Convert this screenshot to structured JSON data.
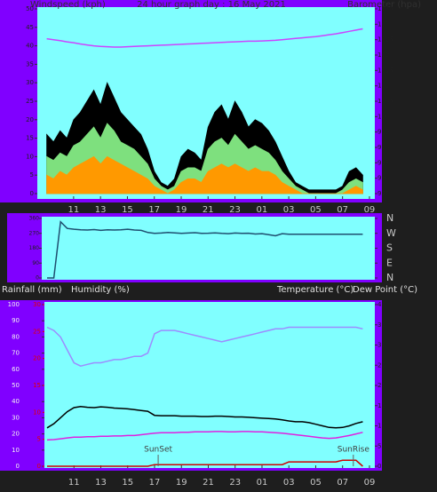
{
  "chart_data": [
    {
      "type": "line",
      "title": "24 hour graph day : 16 May 2021",
      "ylabel": "Windspeed (kph)",
      "y2label": "Barometer (hpa)",
      "x": [
        9,
        9.5,
        10,
        10.5,
        11,
        11.5,
        12,
        12.5,
        13,
        13.5,
        14,
        14.5,
        15,
        15.5,
        16,
        16.5,
        17,
        17.5,
        18,
        18.5,
        19,
        19.5,
        20,
        20.5,
        21,
        21.5,
        22,
        22.5,
        23,
        23.5,
        24,
        24.5,
        25,
        25.5,
        26,
        26.5,
        27,
        27.5,
        28,
        28.5,
        29,
        29.5,
        30,
        30.5,
        31,
        31.5,
        32,
        32.5
      ],
      "xlim": [
        8.3,
        33.4
      ],
      "xticks": [
        11,
        13,
        15,
        17,
        19,
        21,
        23,
        {
          "value": 25,
          "label": "01"
        },
        {
          "value": 27,
          "label": "03"
        },
        {
          "value": 29,
          "label": "05"
        },
        {
          "value": 31,
          "label": "07"
        },
        {
          "value": 33,
          "label": "09"
        }
      ],
      "ylim": [
        0,
        50
      ],
      "yticks": [
        0,
        5,
        10,
        15,
        20,
        25,
        30,
        35,
        40,
        45,
        50
      ],
      "y2lim": [
        975,
        1035
      ],
      "y2ticks": [
        975,
        980,
        985,
        990,
        995,
        1000,
        1005,
        1010,
        1015,
        1020,
        1025,
        1030,
        1035
      ],
      "series": [
        {
          "color": "#000000",
          "fill": true,
          "values": [
            16,
            14,
            17,
            15,
            20,
            22,
            25,
            28,
            24,
            30,
            26,
            22,
            20,
            18,
            16,
            12,
            6,
            3,
            2,
            4,
            10,
            12,
            11,
            9,
            18,
            22,
            24,
            20,
            25,
            22,
            18,
            20,
            19,
            17,
            14,
            10,
            6,
            3,
            2,
            1,
            1,
            1,
            1,
            1,
            2,
            6,
            7,
            5
          ]
        },
        {
          "color": "#7ee07e",
          "fill": true,
          "values": [
            10,
            9,
            11,
            10,
            13,
            14,
            16,
            18,
            15,
            19,
            17,
            14,
            13,
            12,
            10,
            8,
            4,
            2,
            1,
            2,
            6,
            7,
            7,
            6,
            12,
            14,
            15,
            13,
            16,
            14,
            12,
            13,
            12,
            11,
            9,
            6,
            4,
            2,
            1,
            0,
            0,
            0,
            0,
            0,
            1,
            3,
            4,
            3
          ]
        },
        {
          "color": "#ff9900",
          "fill": true,
          "values": [
            5,
            4,
            6,
            5,
            7,
            8,
            9,
            10,
            8,
            10,
            9,
            8,
            7,
            6,
            5,
            4,
            2,
            1,
            0,
            1,
            3,
            4,
            4,
            3,
            6,
            7,
            8,
            7,
            8,
            7,
            6,
            7,
            6,
            6,
            5,
            3,
            2,
            1,
            0,
            0,
            0,
            0,
            0,
            0,
            0,
            1,
            2,
            1
          ]
        },
        {
          "color": "#cc44ff",
          "fill": false,
          "axis": "y2",
          "values": [
            1025.3,
            1025.0,
            1024.7,
            1024.3,
            1024.0,
            1023.6,
            1023.3,
            1023.0,
            1022.8,
            1022.7,
            1022.6,
            1022.6,
            1022.7,
            1022.8,
            1022.9,
            1023.0,
            1023.1,
            1023.2,
            1023.3,
            1023.4,
            1023.5,
            1023.6,
            1023.7,
            1023.8,
            1023.9,
            1024.0,
            1024.1,
            1024.2,
            1024.3,
            1024.4,
            1024.5,
            1024.5,
            1024.6,
            1024.7,
            1024.8,
            1025.0,
            1025.2,
            1025.4,
            1025.6,
            1025.8,
            1026.0,
            1026.3,
            1026.6,
            1026.9,
            1027.3,
            1027.7,
            1028.1,
            1028.5
          ]
        }
      ]
    },
    {
      "type": "line",
      "x": [
        9,
        9.5,
        10,
        10.5,
        11,
        11.5,
        12,
        12.5,
        13,
        13.5,
        14,
        14.5,
        15,
        15.5,
        16,
        16.5,
        17,
        17.5,
        18,
        18.5,
        19,
        19.5,
        20,
        20.5,
        21,
        21.5,
        22,
        22.5,
        23,
        23.5,
        24,
        24.5,
        25,
        25.5,
        26,
        26.5,
        27,
        27.5,
        28,
        28.5,
        29,
        29.5,
        30,
        30.5,
        31,
        31.5,
        32,
        32.5
      ],
      "xlim": [
        8.6,
        33.4
      ],
      "ylim": [
        0,
        360
      ],
      "yticks": [
        0,
        90,
        180,
        270,
        360
      ],
      "y2lim": [
        0,
        360
      ],
      "y2ticks": [
        {
          "value": 360,
          "label": "N"
        },
        {
          "value": 270,
          "label": "W"
        },
        {
          "value": 180,
          "label": "S"
        },
        {
          "value": 90,
          "label": "E"
        },
        {
          "value": 0,
          "label": "N"
        }
      ],
      "series": [
        {
          "color": "#1f4f70",
          "fill": false,
          "values": [
            0,
            0,
            340,
            300,
            295,
            292,
            290,
            293,
            288,
            292,
            290,
            291,
            295,
            290,
            288,
            275,
            270,
            272,
            275,
            273,
            270,
            272,
            274,
            270,
            271,
            273,
            270,
            268,
            272,
            270,
            271,
            266,
            268,
            262,
            255,
            268,
            265,
            265,
            265,
            265,
            265,
            265,
            265,
            265,
            265,
            265,
            265,
            265
          ]
        }
      ]
    },
    {
      "type": "line",
      "left_labels": [
        "Rainfall (mm)",
        "Humidity (%)"
      ],
      "right_labels": [
        "Temperature (°C)",
        "Dew Point (°C)"
      ],
      "x": [
        9,
        9.5,
        10,
        10.5,
        11,
        11.5,
        12,
        12.5,
        13,
        13.5,
        14,
        14.5,
        15,
        15.5,
        16,
        16.5,
        17,
        17.5,
        18,
        18.5,
        19,
        19.5,
        20,
        20.5,
        21,
        21.5,
        22,
        22.5,
        23,
        23.5,
        24,
        24.5,
        25,
        25.5,
        26,
        26.5,
        27,
        27.5,
        28,
        28.5,
        29,
        29.5,
        30,
        30.5,
        31,
        31.5,
        32,
        32.5
      ],
      "xlim": [
        8.8,
        33.4
      ],
      "xticks": [
        11,
        13,
        15,
        17,
        19,
        21,
        23,
        {
          "value": 25,
          "label": "01"
        },
        {
          "value": 27,
          "label": "03"
        },
        {
          "value": 29,
          "label": "05"
        },
        {
          "value": 31,
          "label": "07"
        },
        {
          "value": 33,
          "label": "09"
        }
      ],
      "ylim": [
        0,
        100
      ],
      "yticks": [
        0,
        10,
        20,
        30,
        40,
        50,
        60,
        70,
        80,
        90,
        100
      ],
      "y3lim": [
        0,
        30
      ],
      "y3ticks": [
        0,
        5,
        10,
        15,
        20,
        25,
        30
      ],
      "y3tick_color": "#e00000",
      "y2lim": [
        0,
        40
      ],
      "y2ticks": [
        0,
        5,
        10,
        15,
        20,
        25,
        30,
        35,
        40
      ],
      "annotations": [
        {
          "text": "SunSet",
          "x": 17.27
        },
        {
          "text": "SunRise",
          "x": 31.8
        }
      ],
      "series": [
        {
          "color": "#d00000",
          "fill": false,
          "axis": "y3",
          "values": [
            0,
            0,
            0,
            0,
            0,
            0,
            0,
            0,
            0,
            0,
            0,
            0,
            0,
            0,
            0,
            0,
            0.3,
            0.3,
            0.3,
            0.3,
            0.3,
            0.3,
            0.3,
            0.3,
            0.3,
            0.3,
            0.3,
            0.3,
            0.3,
            0.3,
            0.3,
            0.3,
            0.3,
            0.3,
            0.3,
            0.3,
            0.8,
            0.8,
            0.8,
            0.8,
            0.8,
            0.8,
            0.8,
            0.8,
            1.1,
            1.1,
            1.1,
            0
          ]
        },
        {
          "color": "#9c8cff",
          "fill": false,
          "values": [
            86,
            84,
            80,
            72,
            64,
            62,
            63,
            64,
            64,
            65,
            66,
            66,
            67,
            68,
            68,
            70,
            82,
            84,
            84,
            84,
            83,
            82,
            81,
            80,
            79,
            78,
            77,
            78,
            79,
            80,
            81,
            82,
            83,
            84,
            85,
            85,
            86,
            86,
            86,
            86,
            86,
            86,
            86,
            86,
            86,
            86,
            86,
            85
          ]
        },
        {
          "color": "#000000",
          "fill": false,
          "axis": "y2",
          "values": [
            9.5,
            10.5,
            12,
            13.5,
            14.5,
            14.8,
            14.6,
            14.5,
            14.7,
            14.6,
            14.4,
            14.3,
            14.2,
            14.0,
            13.8,
            13.6,
            12.6,
            12.5,
            12.5,
            12.5,
            12.4,
            12.4,
            12.4,
            12.3,
            12.3,
            12.4,
            12.4,
            12.3,
            12.2,
            12.2,
            12.1,
            12.0,
            11.9,
            11.8,
            11.7,
            11.5,
            11.2,
            11.0,
            11.0,
            10.8,
            10.4,
            10.0,
            9.6,
            9.5,
            9.6,
            10.0,
            10.6,
            11.0
          ]
        },
        {
          "color": "#e020e0",
          "fill": false,
          "axis": "y2",
          "values": [
            6.5,
            6.6,
            6.8,
            7.0,
            7.2,
            7.2,
            7.3,
            7.3,
            7.4,
            7.4,
            7.5,
            7.5,
            7.6,
            7.6,
            7.8,
            8.0,
            8.2,
            8.3,
            8.3,
            8.3,
            8.4,
            8.4,
            8.5,
            8.5,
            8.5,
            8.6,
            8.6,
            8.5,
            8.5,
            8.6,
            8.6,
            8.5,
            8.5,
            8.4,
            8.3,
            8.2,
            8.0,
            7.8,
            7.6,
            7.4,
            7.2,
            7.0,
            6.9,
            7.0,
            7.3,
            7.6,
            8.0,
            8.4
          ]
        }
      ]
    }
  ]
}
